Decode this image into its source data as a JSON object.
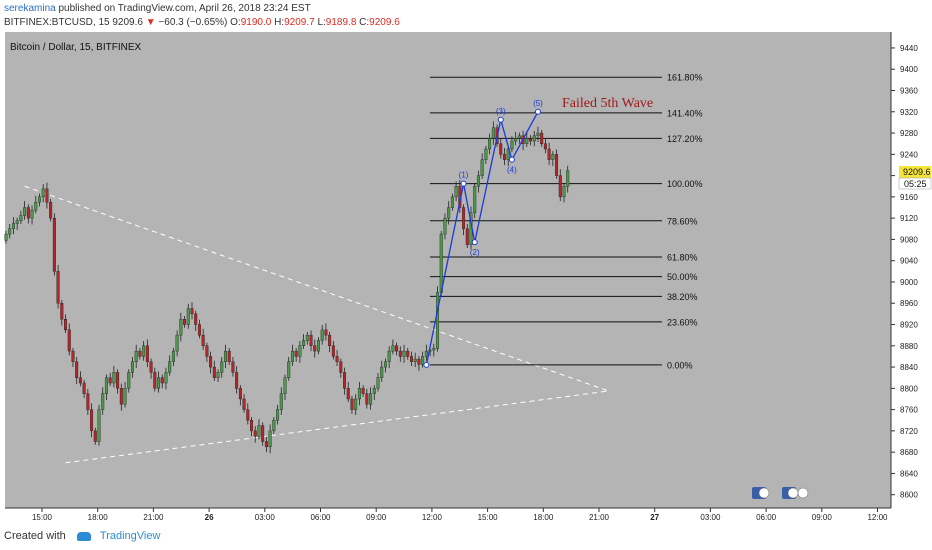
{
  "header": {
    "username": "serekamina",
    "published_text": "published on TradingView.com, April 26, 2018 23:24 EST",
    "symbol": "BITFINEX:BTCUSD, 15",
    "last_price": "9209.6",
    "change": "−60.3 (−0.65%)",
    "o_label": "O:",
    "o_value": "9190.0",
    "h_label": "H:",
    "h_value": "9209.7",
    "l_label": "L:",
    "l_value": "9189.8",
    "c_label": "C:",
    "c_value": "9209.6"
  },
  "chart_title": "Bitcoin / Dollar, 15, BITFINEX",
  "price_label": "9209.6",
  "countdown_label": "05:25",
  "footer": {
    "created_with": "Created with",
    "brand": "TradingView"
  },
  "colors": {
    "background": "#b4b4b4",
    "up": "#4b9a4b",
    "down": "#b5262b",
    "wave": "#1c3ad6",
    "annotation": "#a11a1a"
  },
  "chart_data": {
    "type": "candlestick",
    "ylim": [
      8575,
      9470
    ],
    "y_ticks": [
      8600,
      8640,
      8680,
      8720,
      8760,
      8800,
      8840,
      8880,
      8920,
      8960,
      9000,
      9040,
      9080,
      9120,
      9160,
      9200,
      9240,
      9280,
      9320,
      9360,
      9400,
      9440
    ],
    "x_tick_labels": [
      "15:00",
      "18:00",
      "21:00",
      "26",
      "03:00",
      "06:00",
      "09:00",
      "12:00",
      "15:00",
      "18:00",
      "21:00",
      "27",
      "03:00",
      "06:00",
      "09:00",
      "12:00"
    ],
    "closes": [
      9090,
      9100,
      9110,
      9115,
      9125,
      9140,
      9120,
      9135,
      9150,
      9160,
      9175,
      9150,
      9120,
      9020,
      8960,
      8930,
      8910,
      8870,
      8850,
      8820,
      8810,
      8790,
      8760,
      8720,
      8700,
      8760,
      8790,
      8820,
      8810,
      8830,
      8800,
      8770,
      8800,
      8830,
      8850,
      8870,
      8860,
      8880,
      8850,
      8830,
      8800,
      8820,
      8810,
      8830,
      8850,
      8870,
      8900,
      8930,
      8920,
      8950,
      8940,
      8920,
      8900,
      8880,
      8860,
      8840,
      8820,
      8830,
      8850,
      8870,
      8850,
      8830,
      8800,
      8780,
      8760,
      8740,
      8720,
      8710,
      8730,
      8700,
      8690,
      8720,
      8740,
      8760,
      8790,
      8820,
      8850,
      8870,
      8860,
      8880,
      8890,
      8900,
      8880,
      8870,
      8890,
      8910,
      8900,
      8880,
      8860,
      8850,
      8830,
      8800,
      8780,
      8760,
      8780,
      8800,
      8790,
      8770,
      8790,
      8800,
      8820,
      8840,
      8850,
      8870,
      8880,
      8870,
      8860,
      8870,
      8860,
      8850,
      8855,
      8845,
      8860,
      8870,
      8872,
      8875,
      8980,
      9090,
      9120,
      9140,
      9160,
      9180,
      9140,
      9100,
      9070,
      9130,
      9180,
      9200,
      9230,
      9250,
      9270,
      9290,
      9260,
      9240,
      9230,
      9250,
      9265,
      9270,
      9275,
      9260,
      9270,
      9265,
      9275,
      9280,
      9260,
      9250,
      9230,
      9240,
      9200,
      9160,
      9180,
      9209.6
    ],
    "fibonacci": {
      "levels": [
        {
          "label": "161.80%",
          "price": 9385
        },
        {
          "label": "141.40%",
          "price": 9318
        },
        {
          "label": "127.20%",
          "price": 9270
        },
        {
          "label": "100.00%",
          "price": 9185
        },
        {
          "label": "78.60%",
          "price": 9115
        },
        {
          "label": "61.80%",
          "price": 9047
        },
        {
          "label": "50.00%",
          "price": 9010
        },
        {
          "label": "38.20%",
          "price": 8973
        },
        {
          "label": "23.60%",
          "price": 8925
        },
        {
          "label": "0.00%",
          "price": 8844
        }
      ]
    },
    "waves": [
      {
        "label": "(1)",
        "index": 123,
        "price": 9185
      },
      {
        "label": "(2)",
        "index": 126,
        "price": 9075
      },
      {
        "label": "(3)",
        "index": 133,
        "price": 9305
      },
      {
        "label": "(4)",
        "index": 136,
        "price": 9230
      },
      {
        "label": "(5)",
        "index": 143,
        "price": 9320
      }
    ],
    "wave_start": {
      "index": 113,
      "price": 8844
    },
    "annotation": "Failed 5th Wave",
    "trendlines": [
      {
        "from": {
          "index": 5,
          "price": 9180
        },
        "to": {
          "index": 162,
          "price": 8795
        }
      },
      {
        "from": {
          "index": 16,
          "price": 8660
        },
        "to": {
          "index": 162,
          "price": 8795
        }
      }
    ]
  }
}
